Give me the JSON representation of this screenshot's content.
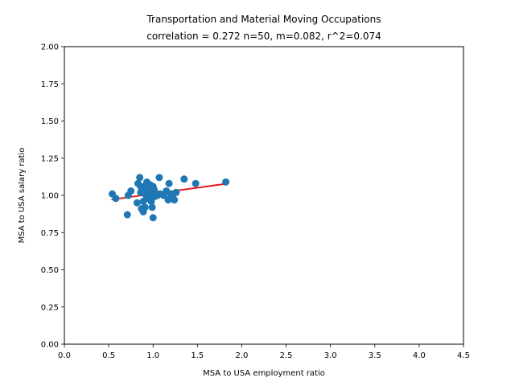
{
  "chart_data": {
    "type": "scatter",
    "title_line1": "Transportation and Material Moving Occupations",
    "title_line2": "correlation = 0.272 n=50, m=0.082, r^2=0.074",
    "xlabel": "MSA to USA employment ratio",
    "ylabel": "MSA to USA salary ratio",
    "xlim": [
      0.0,
      4.5
    ],
    "ylim": [
      0.0,
      2.0
    ],
    "xticks": [
      "0.0",
      "0.5",
      "1.0",
      "1.5",
      "2.0",
      "2.5",
      "3.0",
      "3.5",
      "4.0",
      "4.5"
    ],
    "yticks": [
      "0.00",
      "0.25",
      "0.50",
      "0.75",
      "1.00",
      "1.25",
      "1.50",
      "1.75",
      "2.00"
    ],
    "grid": false,
    "point_color": "#1f77b4",
    "fit_color": "#e41a1c",
    "fit_line": {
      "x": [
        0.53,
        1.81
      ],
      "y": [
        0.972,
        1.077
      ]
    },
    "points": [
      {
        "x": 0.54,
        "y": 1.01
      },
      {
        "x": 0.58,
        "y": 0.98
      },
      {
        "x": 0.71,
        "y": 0.87
      },
      {
        "x": 0.72,
        "y": 1.0
      },
      {
        "x": 0.75,
        "y": 1.03
      },
      {
        "x": 0.82,
        "y": 0.95
      },
      {
        "x": 0.83,
        "y": 1.08
      },
      {
        "x": 0.85,
        "y": 1.12
      },
      {
        "x": 0.86,
        "y": 1.06
      },
      {
        "x": 0.87,
        "y": 0.91
      },
      {
        "x": 0.88,
        "y": 1.05
      },
      {
        "x": 0.89,
        "y": 0.89
      },
      {
        "x": 0.89,
        "y": 0.96
      },
      {
        "x": 0.9,
        "y": 1.06
      },
      {
        "x": 0.91,
        "y": 0.92
      },
      {
        "x": 0.92,
        "y": 1.0
      },
      {
        "x": 0.93,
        "y": 1.09
      },
      {
        "x": 0.94,
        "y": 1.03
      },
      {
        "x": 0.95,
        "y": 1.01
      },
      {
        "x": 0.96,
        "y": 0.99
      },
      {
        "x": 0.97,
        "y": 1.07
      },
      {
        "x": 0.98,
        "y": 1.02
      },
      {
        "x": 0.99,
        "y": 1.0
      },
      {
        "x": 0.99,
        "y": 0.92
      },
      {
        "x": 1.0,
        "y": 0.85
      },
      {
        "x": 1.0,
        "y": 1.06
      },
      {
        "x": 1.01,
        "y": 0.99
      },
      {
        "x": 1.02,
        "y": 1.02
      },
      {
        "x": 1.03,
        "y": 1.01
      },
      {
        "x": 1.04,
        "y": 1.0
      },
      {
        "x": 1.05,
        "y": 1.0
      },
      {
        "x": 1.07,
        "y": 1.12
      },
      {
        "x": 1.08,
        "y": 1.01
      },
      {
        "x": 1.17,
        "y": 0.97
      },
      {
        "x": 1.18,
        "y": 1.08
      },
      {
        "x": 1.2,
        "y": 0.98
      },
      {
        "x": 1.2,
        "y": 1.01
      },
      {
        "x": 1.22,
        "y": 1.0
      },
      {
        "x": 1.24,
        "y": 0.97
      },
      {
        "x": 1.26,
        "y": 1.02
      },
      {
        "x": 1.35,
        "y": 1.11
      },
      {
        "x": 1.48,
        "y": 1.08
      },
      {
        "x": 1.82,
        "y": 1.09
      },
      {
        "x": 0.96,
        "y": 1.04
      },
      {
        "x": 0.94,
        "y": 0.98
      },
      {
        "x": 1.01,
        "y": 1.04
      },
      {
        "x": 1.12,
        "y": 1.0
      },
      {
        "x": 0.86,
        "y": 1.02
      },
      {
        "x": 1.15,
        "y": 1.03
      },
      {
        "x": 0.98,
        "y": 0.96
      }
    ]
  }
}
